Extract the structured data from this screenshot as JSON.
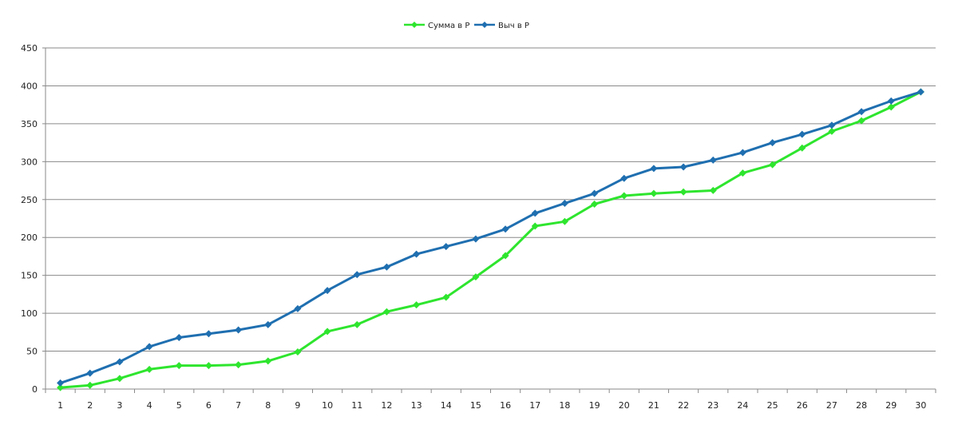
{
  "chart_data": {
    "type": "line",
    "categories": [
      "1",
      "2",
      "3",
      "4",
      "5",
      "6",
      "7",
      "8",
      "9",
      "10",
      "11",
      "12",
      "13",
      "14",
      "15",
      "16",
      "17",
      "18",
      "19",
      "20",
      "21",
      "22",
      "23",
      "24",
      "25",
      "26",
      "27",
      "28",
      "29",
      "30"
    ],
    "ylim": [
      0,
      450
    ],
    "yticks": [
      0,
      50,
      100,
      150,
      200,
      250,
      300,
      350,
      400,
      450
    ],
    "grid": true,
    "legend_position": "top-center",
    "series": [
      {
        "name": "Сумма в Р",
        "color": "#2ee52e",
        "values": [
          2,
          5,
          14,
          26,
          31,
          31,
          32,
          37,
          49,
          76,
          85,
          102,
          111,
          121,
          148,
          176,
          215,
          221,
          244,
          255,
          258,
          260,
          262,
          285,
          296,
          318,
          340,
          354,
          372,
          392
        ]
      },
      {
        "name": "Выч в Р",
        "color": "#1f6fb0",
        "values": [
          8,
          21,
          36,
          56,
          68,
          73,
          78,
          85,
          106,
          130,
          151,
          161,
          178,
          188,
          198,
          211,
          232,
          245,
          258,
          278,
          291,
          293,
          302,
          312,
          325,
          336,
          348,
          366,
          380,
          392
        ]
      }
    ]
  }
}
